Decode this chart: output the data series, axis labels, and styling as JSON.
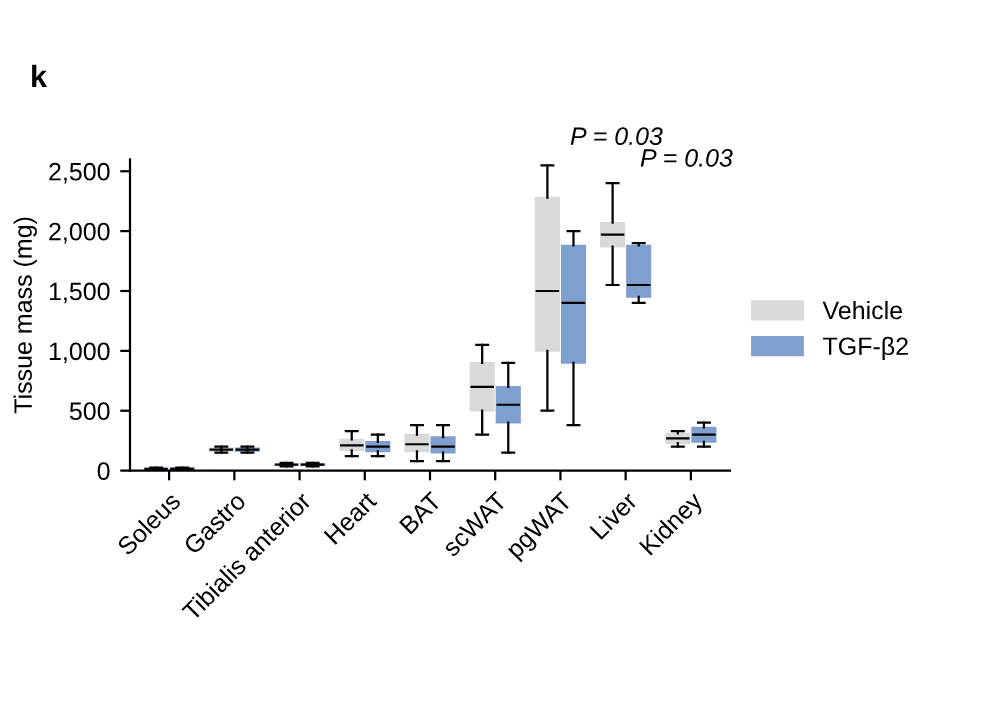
{
  "chart_data": {
    "type": "box",
    "ylabel": "Tissue mass (mg)",
    "categories": [
      "Soleus",
      "Gastro",
      "Tibialis anterior",
      "Heart",
      "BAT",
      "scWAT",
      "pgWAT",
      "Liver",
      "Kidney"
    ],
    "ylim": [
      0,
      2600
    ],
    "yticks": [
      0,
      500,
      {
        "value": 1000,
        "label": "1,000"
      },
      {
        "value": 1500,
        "label": "1,500"
      },
      {
        "value": 2000,
        "label": "2,000"
      },
      {
        "value": 2500,
        "label": "2,500"
      }
    ],
    "series": [
      {
        "name": "Vehicle",
        "color": "#d9d9d9",
        "boxes": [
          {
            "low": 5,
            "q1": 10,
            "median": 15,
            "q3": 20,
            "high": 25
          },
          {
            "low": 150,
            "q1": 165,
            "median": 175,
            "q3": 185,
            "high": 200
          },
          {
            "low": 35,
            "q1": 45,
            "median": 50,
            "q3": 55,
            "high": 65
          },
          {
            "low": 120,
            "q1": 170,
            "median": 210,
            "q3": 260,
            "high": 330
          },
          {
            "low": 80,
            "q1": 160,
            "median": 220,
            "q3": 300,
            "high": 380
          },
          {
            "low": 300,
            "q1": 500,
            "median": 700,
            "q3": 900,
            "high": 1050
          },
          {
            "low": 500,
            "q1": 1000,
            "median": 1500,
            "q3": 2280,
            "high": 2550
          },
          {
            "low": 1550,
            "q1": 1870,
            "median": 1970,
            "q3": 2070,
            "high": 2400
          },
          {
            "low": 200,
            "q1": 230,
            "median": 270,
            "q3": 310,
            "high": 330
          }
        ]
      },
      {
        "name": "TGF-β2",
        "color": "#7f9fcf",
        "boxes": [
          {
            "low": 5,
            "q1": 10,
            "median": 15,
            "q3": 20,
            "high": 25
          },
          {
            "low": 150,
            "q1": 165,
            "median": 175,
            "q3": 185,
            "high": 200
          },
          {
            "low": 35,
            "q1": 45,
            "median": 50,
            "q3": 55,
            "high": 65
          },
          {
            "low": 120,
            "q1": 160,
            "median": 200,
            "q3": 240,
            "high": 300
          },
          {
            "low": 80,
            "q1": 150,
            "median": 200,
            "q3": 280,
            "high": 380
          },
          {
            "low": 150,
            "q1": 400,
            "median": 550,
            "q3": 700,
            "high": 900
          },
          {
            "low": 380,
            "q1": 900,
            "median": 1400,
            "q3": 1880,
            "high": 2000
          },
          {
            "low": 1400,
            "q1": 1450,
            "median": 1550,
            "q3": 1880,
            "high": 1900
          },
          {
            "low": 200,
            "q1": 240,
            "median": 300,
            "q3": 360,
            "high": 400
          }
        ]
      }
    ],
    "annotations": [
      "k",
      "P = 0.03",
      "P = 0.03"
    ],
    "legend": "right",
    "grid": false
  }
}
